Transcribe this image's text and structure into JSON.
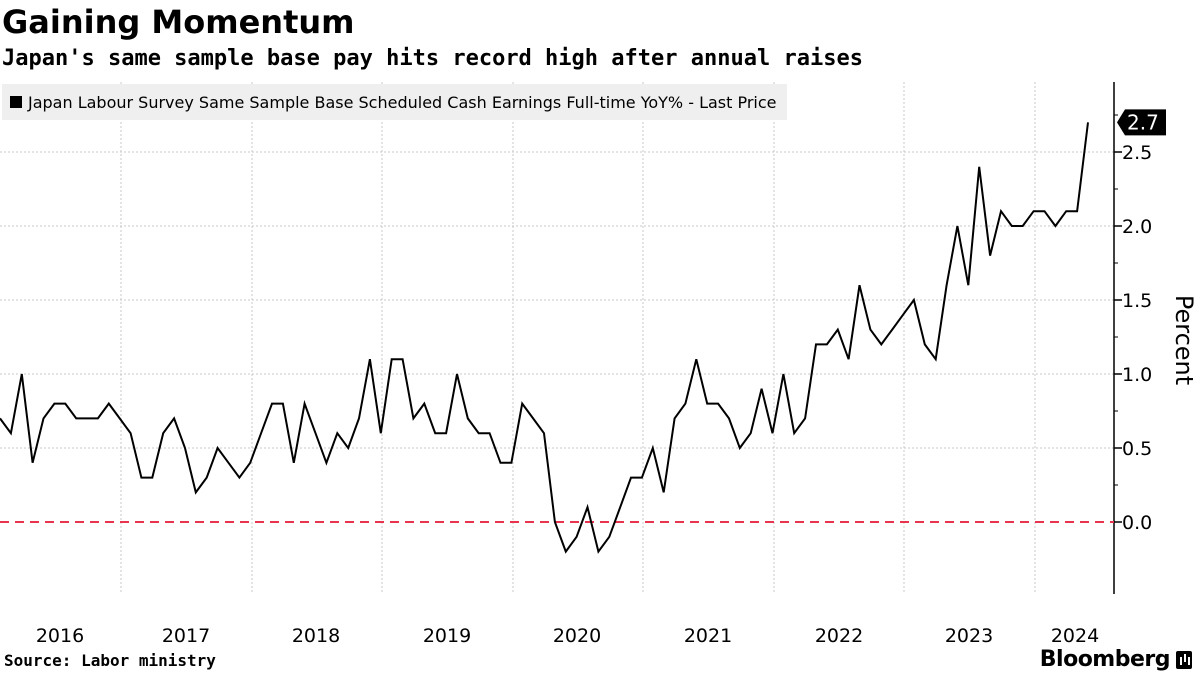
{
  "chart_data": {
    "type": "line",
    "title": "Gaining Momentum",
    "subtitle": "Japan's same sample base pay hits record high after annual raises",
    "ylabel": "Percent",
    "xlabel": "",
    "ylim": [
      -0.5,
      2.95
    ],
    "yticks": [
      0.0,
      0.5,
      1.0,
      1.5,
      2.0,
      2.5
    ],
    "ytick_labels": [
      "0.0",
      "0.5",
      "1.0",
      "1.5",
      "2.0",
      "2.5"
    ],
    "xtick_labels": [
      "2016",
      "2017",
      "2018",
      "2019",
      "2020",
      "2021",
      "2022",
      "2023",
      "2024"
    ],
    "x_start_year": 2016,
    "reference_line": {
      "value": 0.0,
      "color": "#e8344e",
      "style": "dashed"
    },
    "last_price_label": "2.7",
    "grid": true,
    "legend_position": "top-left",
    "series": [
      {
        "name": "Japan Labour Survey Same Sample Base Scheduled Cash Earnings Full-time YoY% - Last Price",
        "color": "#000000",
        "values": [
          0.7,
          0.6,
          1.0,
          0.4,
          0.7,
          0.8,
          0.8,
          0.7,
          0.7,
          0.7,
          0.8,
          0.7,
          0.6,
          0.3,
          0.3,
          0.6,
          0.7,
          0.5,
          0.2,
          0.3,
          0.5,
          0.4,
          0.3,
          0.4,
          0.6,
          0.8,
          0.8,
          0.4,
          0.8,
          0.6,
          0.4,
          0.6,
          0.5,
          0.7,
          1.1,
          0.6,
          1.1,
          1.1,
          0.7,
          0.8,
          0.6,
          0.6,
          1.0,
          0.7,
          0.6,
          0.6,
          0.4,
          0.4,
          0.8,
          0.7,
          0.6,
          0.0,
          -0.2,
          -0.1,
          0.1,
          -0.2,
          -0.1,
          0.1,
          0.3,
          0.3,
          0.5,
          0.2,
          0.7,
          0.8,
          1.1,
          0.8,
          0.8,
          0.7,
          0.5,
          0.6,
          0.9,
          0.6,
          1.0,
          0.6,
          0.7,
          1.2,
          1.2,
          1.3,
          1.1,
          1.6,
          1.3,
          1.2,
          1.3,
          1.4,
          1.5,
          1.2,
          1.1,
          1.6,
          2.0,
          1.6,
          2.4,
          1.8,
          2.1,
          2.0,
          2.0,
          2.1,
          2.1,
          2.0,
          2.1,
          2.1,
          2.7
        ]
      }
    ],
    "source": "Source: Labor ministry",
    "brand": "Bloomberg"
  }
}
